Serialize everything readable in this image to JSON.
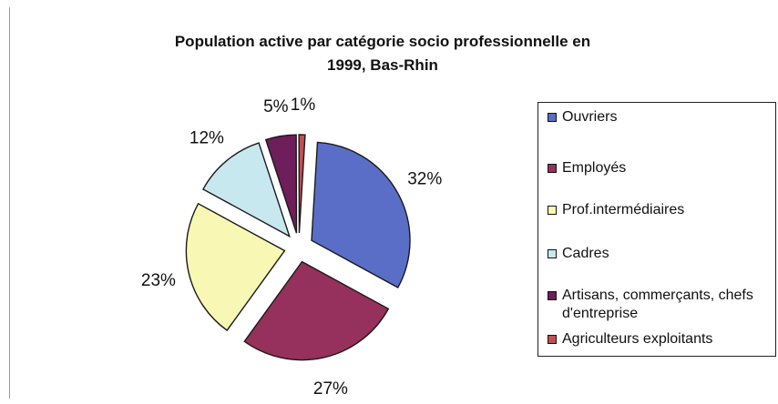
{
  "title_line1": "Population active par catégorie socio professionnelle en",
  "title_line2": "1999, Bas-Rhin",
  "chart_data": {
    "type": "pie",
    "title": "Population active par catégorie socio professionnelle en 1999, Bas-Rhin",
    "categories": [
      "Ouvriers",
      "Employés",
      "Prof.intermédiaires",
      "Cadres",
      "Artisans, commerçants, chefs d'entreprise",
      "Agriculteurs exploitants"
    ],
    "values": [
      32,
      27,
      23,
      12,
      5,
      1
    ],
    "labels": [
      "32%",
      "27%",
      "23%",
      "12%",
      "5%",
      "1%"
    ],
    "colors": [
      "#5a6ec8",
      "#96305c",
      "#f8f8b4",
      "#c8e8f0",
      "#6e1e5a",
      "#c05050"
    ],
    "exploded": true,
    "legend_position": "right"
  },
  "legend": {
    "items": [
      {
        "label": "Ouvriers"
      },
      {
        "label": "Employés"
      },
      {
        "label": "Prof.intermédiaires"
      },
      {
        "label": "Cadres"
      },
      {
        "label": "Artisans, commerçants, chefs d'entreprise"
      },
      {
        "label": "Agriculteurs exploitants"
      }
    ]
  }
}
